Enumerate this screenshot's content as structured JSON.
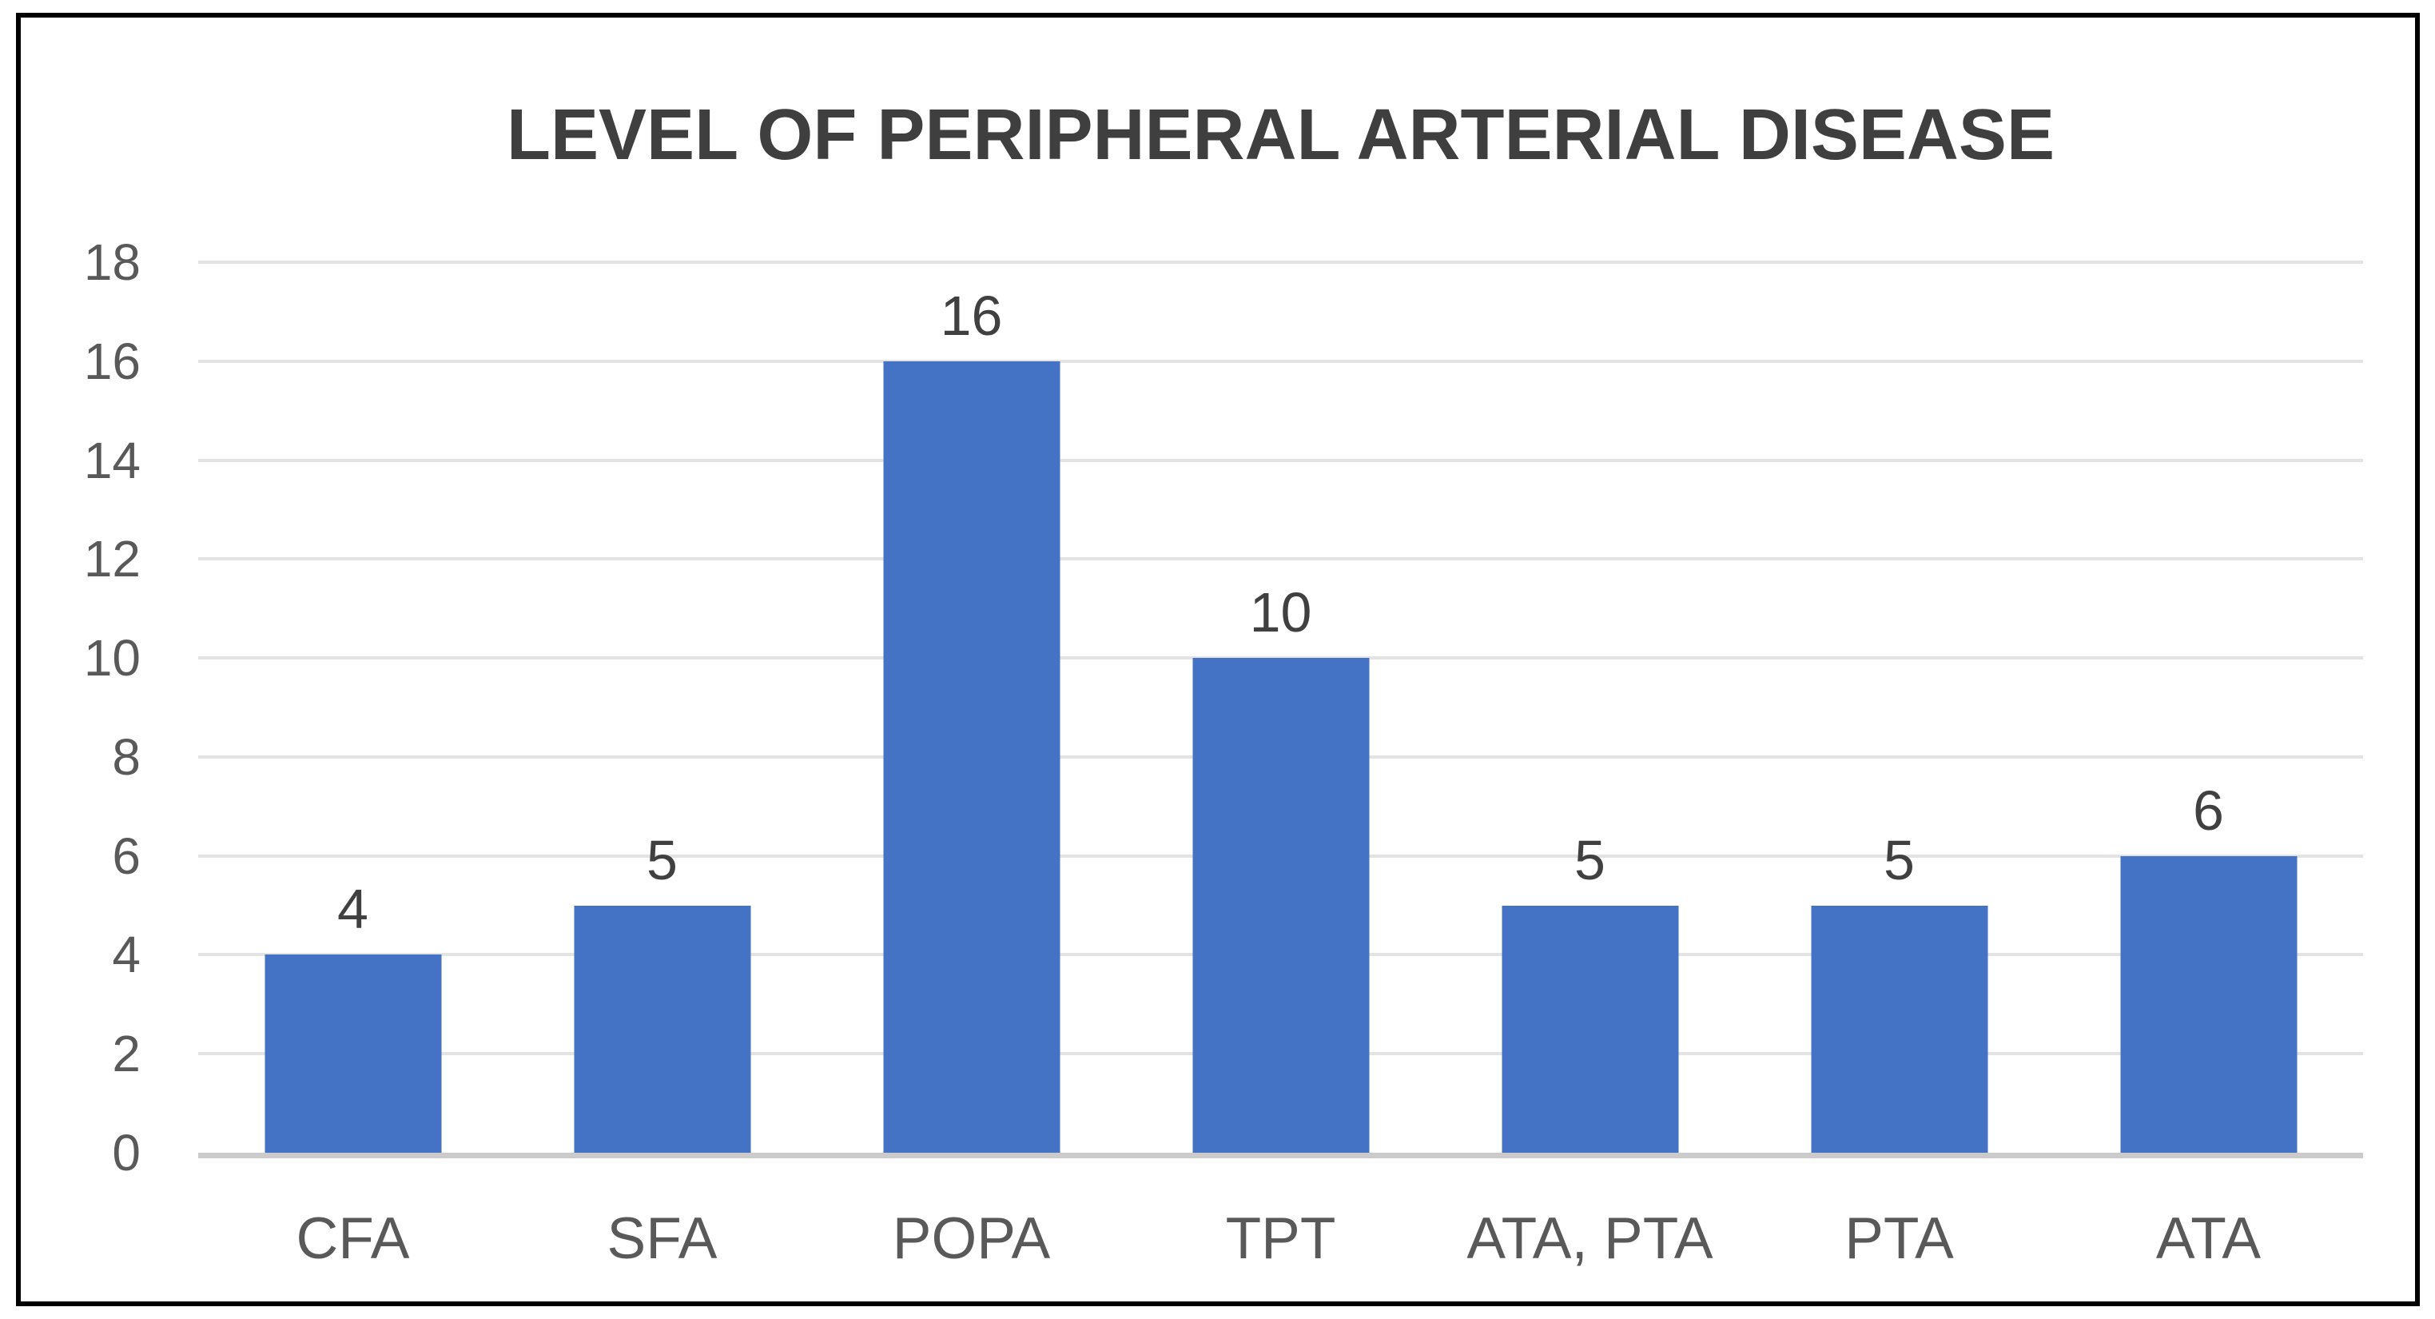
{
  "colors": {
    "bar": "#4472C4",
    "gridline": "#E3E3E3",
    "axis_line": "#CBCBCB",
    "title_text": "#3F3F3F",
    "tick_text": "#595959",
    "data_label_text": "#404040",
    "border": "#000000"
  },
  "chart_data": {
    "type": "bar",
    "title": "LEVEL OF PERIPHERAL ARTERIAL DISEASE",
    "categories": [
      "CFA",
      "SFA",
      "POPA",
      "TPT",
      "ATA, PTA",
      "PTA",
      "ATA"
    ],
    "values": [
      4,
      5,
      16,
      10,
      5,
      5,
      6
    ],
    "xlabel": "",
    "ylabel": "",
    "ylim": [
      0,
      18
    ],
    "ytick_step": 2,
    "yticks": [
      0,
      2,
      4,
      6,
      8,
      10,
      12,
      14,
      16,
      18
    ],
    "grid": "horizontal",
    "legend": "none",
    "data_labels": true,
    "bar_color": "#4472C4"
  }
}
